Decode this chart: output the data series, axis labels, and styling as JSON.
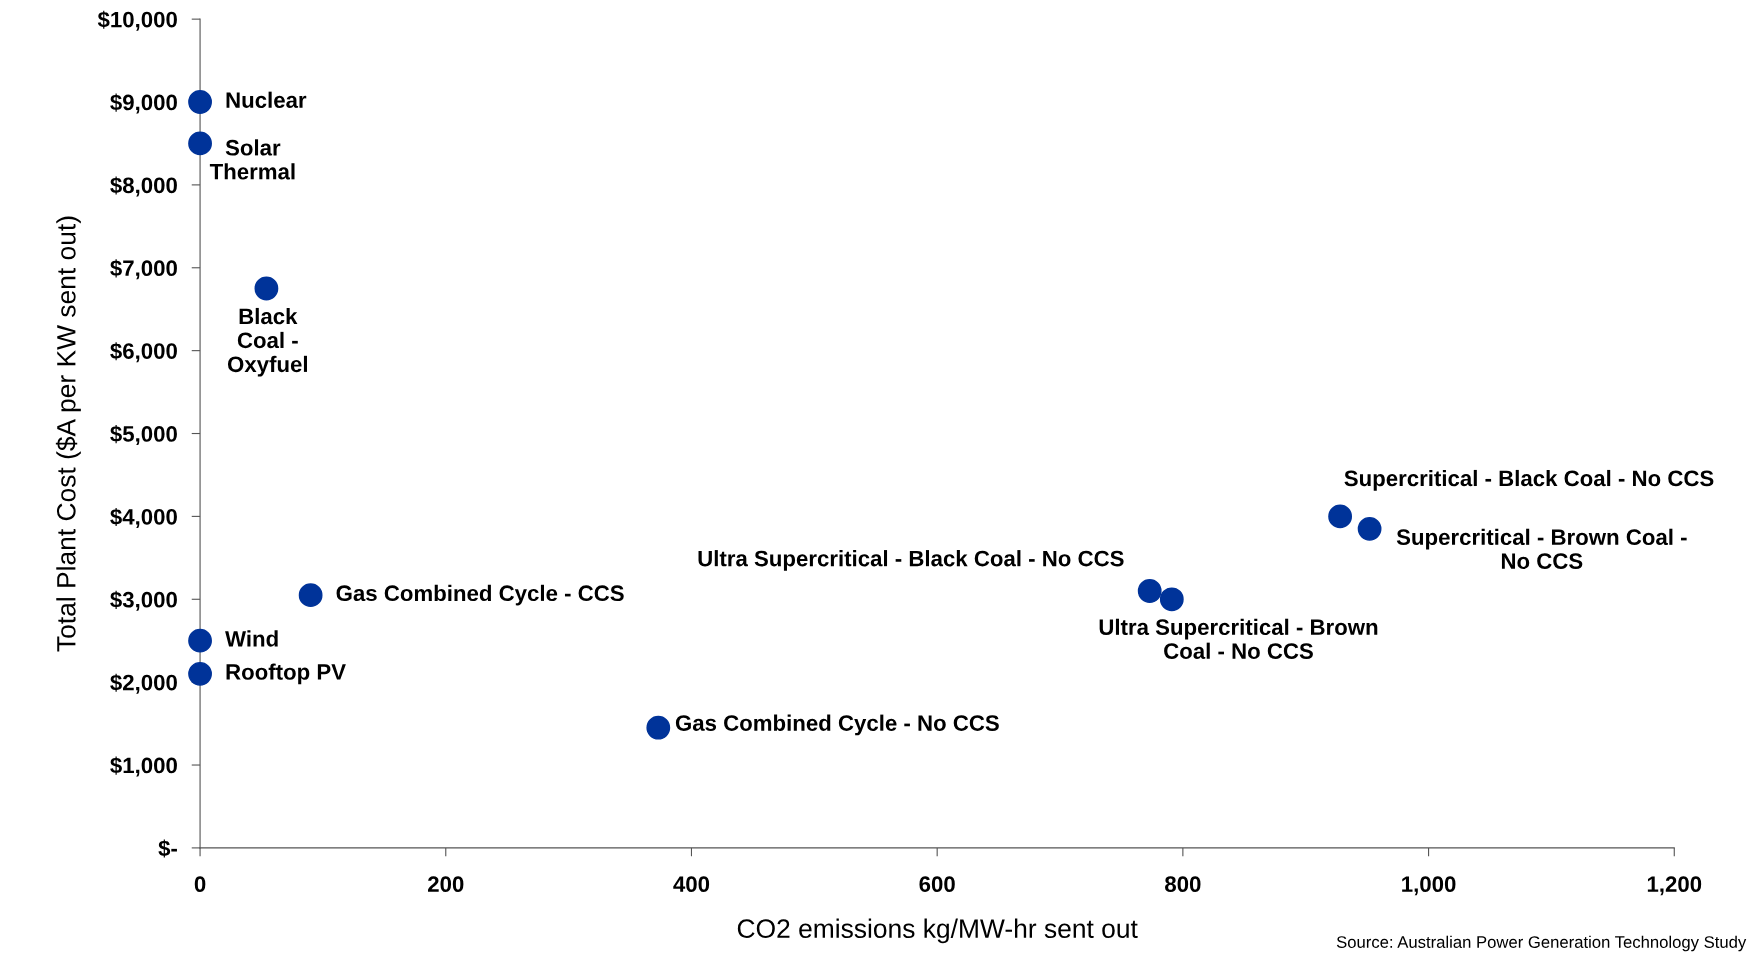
{
  "chart_data": {
    "type": "scatter",
    "xlabel": "CO2 emissions kg/MW-hr sent out",
    "ylabel": "Total Plant Cost ($A per KW sent out)",
    "x": [
      0,
      0,
      54,
      90,
      0,
      0,
      373,
      773,
      791,
      928,
      952
    ],
    "series": [
      {
        "color": "#003399",
        "values": [
          9000,
          8500,
          6750,
          3050,
          2500,
          2100,
          1450,
          3100,
          3000,
          4000,
          3850
        ]
      }
    ],
    "marker": "circle",
    "xlim": [
      0,
      1200
    ],
    "xticks": [
      0,
      200,
      400,
      600,
      800,
      {
        "value": 1000,
        "label": "1,000"
      },
      {
        "value": 1200,
        "label": "1,200"
      }
    ],
    "ylim": [
      0,
      10000
    ],
    "yticks": [
      {
        "value": 0,
        "label": "$-"
      },
      {
        "value": 1000,
        "label": "$1,000"
      },
      {
        "value": 2000,
        "label": "$2,000"
      },
      {
        "value": 3000,
        "label": "$3,000"
      },
      {
        "value": 4000,
        "label": "$4,000"
      },
      {
        "value": 5000,
        "label": "$5,000"
      },
      {
        "value": 6000,
        "label": "$6,000"
      },
      {
        "value": 7000,
        "label": "$7,000"
      },
      {
        "value": 8000,
        "label": "$8,000"
      },
      {
        "value": 9000,
        "label": "$9,000"
      },
      {
        "value": 10000,
        "label": "$10,000"
      }
    ],
    "grid": false,
    "annotations": [
      {
        "text": "Nuclear",
        "x": 0,
        "y": 9000
      },
      {
        "text": "Solar\nThermal",
        "x": 0,
        "y": 8500
      },
      {
        "text": "Black\nCoal -\nOxyfuel",
        "x": 54,
        "y": 6750
      },
      {
        "text": "Gas Combined Cycle - CCS",
        "x": 90,
        "y": 3050
      },
      {
        "text": "Wind",
        "x": 0,
        "y": 2500
      },
      {
        "text": "Rooftop PV",
        "x": 0,
        "y": 2100
      },
      {
        "text": "Gas Combined Cycle - No CCS",
        "x": 373,
        "y": 1450
      },
      {
        "text": "Ultra Supercritical - Black Coal - No CCS",
        "x": 773,
        "y": 3100
      },
      {
        "text": "Ultra Supercritical - Brown\nCoal - No CCS",
        "x": 791,
        "y": 3000
      },
      {
        "text": "Supercritical - Black Coal - No CCS",
        "x": 928,
        "y": 4000
      },
      {
        "text": "Supercritical - Brown Coal -\nNo CCS",
        "x": 952,
        "y": 3850
      },
      "Source: Australian Power Generation Technology Study"
    ]
  }
}
